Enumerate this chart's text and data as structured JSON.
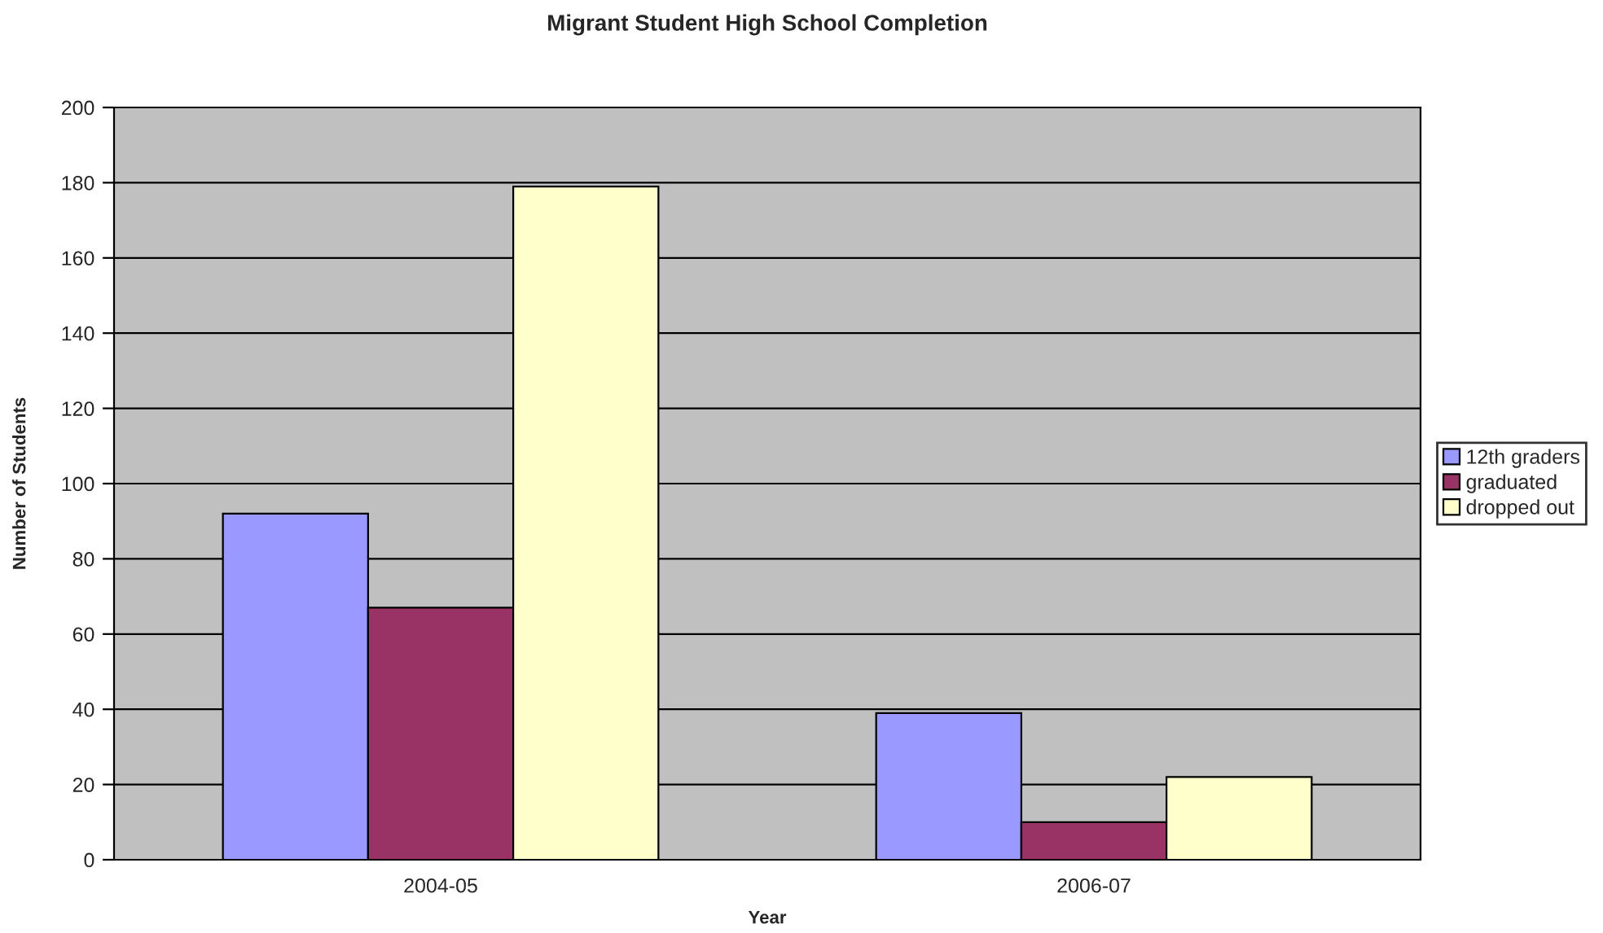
{
  "chart_data": {
    "type": "bar",
    "title": "Migrant Student High School Completion",
    "xlabel": "Year",
    "ylabel": "Number of Students",
    "categories": [
      "2004-05",
      "2006-07"
    ],
    "series": [
      {
        "name": "12th graders",
        "color": "#9999ff",
        "values": [
          92,
          39
        ]
      },
      {
        "name": "graduated",
        "color": "#993366",
        "values": [
          67,
          10
        ]
      },
      {
        "name": "dropped out",
        "color": "#ffffcc",
        "values": [
          179,
          22
        ]
      }
    ],
    "ylim": [
      0,
      200
    ],
    "yticks": [
      0,
      20,
      40,
      60,
      80,
      100,
      120,
      140,
      160,
      180,
      200
    ],
    "grid": "y",
    "legend": "right"
  }
}
